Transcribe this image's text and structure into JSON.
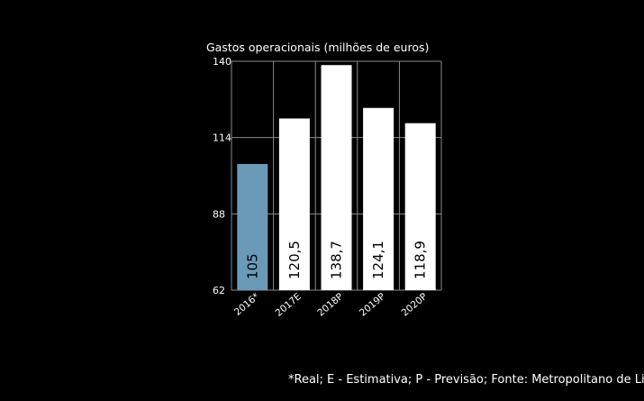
{
  "chart_data": {
    "type": "bar",
    "title": "Gastos operacionais (milhões de euros)",
    "categories": [
      "2016*",
      "2017E",
      "2018P",
      "2019P",
      "2020P"
    ],
    "values": [
      105,
      120.5,
      138.7,
      124.1,
      118.9
    ],
    "value_labels": [
      "105",
      "120,5",
      "138,7",
      "124,1",
      "118,9"
    ],
    "yticks": [
      62,
      88,
      114,
      140
    ],
    "ylim": [
      62,
      140
    ],
    "grid": true,
    "colors": {
      "highlight_bar": "#6a9ab8",
      "bar": "#ffffff",
      "grid": "#8a8a8a",
      "background": "#000000"
    },
    "footnote": "*Real; E - Estimativa; P - Previsão; Fonte: Metropolitano de Lisboa"
  }
}
